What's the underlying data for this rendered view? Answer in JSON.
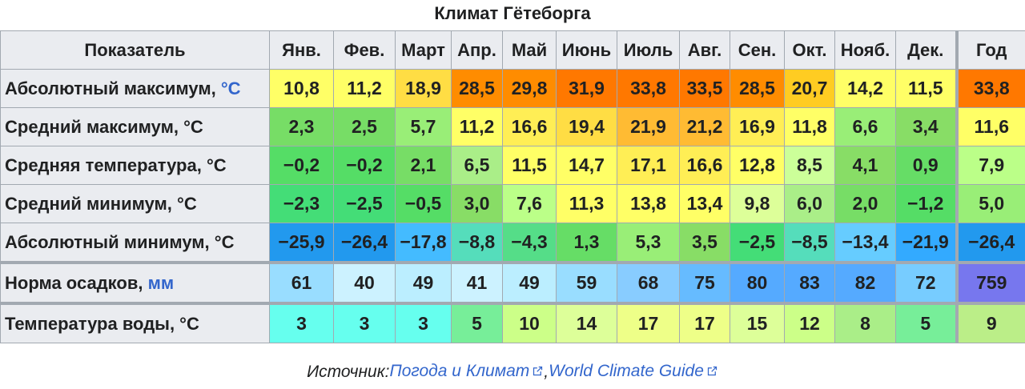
{
  "title": "Климат Гётеборга",
  "header": {
    "indicator": "Показатель",
    "months": [
      "Янв.",
      "Фев.",
      "Март",
      "Апр.",
      "Май",
      "Июнь",
      "Июль",
      "Авг.",
      "Сен.",
      "Окт.",
      "Нояб.",
      "Дек."
    ],
    "year": "Год"
  },
  "rows": [
    {
      "label": "Абсолютный максимум, ",
      "unit": "°C",
      "unit_is_link": true,
      "values": [
        "10,8",
        "11,2",
        "18,9",
        "28,5",
        "29,8",
        "31,9",
        "33,8",
        "33,5",
        "28,5",
        "20,7",
        "14,2",
        "11,5",
        "33,8"
      ],
      "colors": [
        "#ffff66",
        "#ffff66",
        "#ffdd44",
        "#ff8c00",
        "#ff8c00",
        "#ff7800",
        "#ff7800",
        "#ff7800",
        "#ff8c00",
        "#ffcc22",
        "#ffff66",
        "#ffff66",
        "#ff7800"
      ]
    },
    {
      "label": "Средний максимум, °C",
      "unit": "",
      "unit_is_link": false,
      "values": [
        "2,3",
        "2,5",
        "5,7",
        "11,2",
        "16,6",
        "19,4",
        "21,9",
        "21,2",
        "16,9",
        "11,8",
        "6,6",
        "3,4",
        "11,6"
      ],
      "colors": [
        "#77dd66",
        "#77dd66",
        "#99ee77",
        "#ffff66",
        "#ffee55",
        "#ffdd44",
        "#ffbb33",
        "#ffbb33",
        "#ffee55",
        "#ffff66",
        "#99ee77",
        "#88dd66",
        "#ffff66"
      ]
    },
    {
      "label": "Средняя температура, °C",
      "unit": "",
      "unit_is_link": false,
      "values": [
        "−0,2",
        "−0,2",
        "2,1",
        "6,5",
        "11,5",
        "14,7",
        "17,1",
        "16,6",
        "12,8",
        "8,5",
        "4,1",
        "0,9",
        "7,9"
      ],
      "colors": [
        "#55dd66",
        "#55dd66",
        "#77dd66",
        "#aaee88",
        "#ffff66",
        "#ffff66",
        "#ffee55",
        "#ffee55",
        "#ffff66",
        "#ccff99",
        "#88dd66",
        "#66dd66",
        "#bbff88"
      ]
    },
    {
      "label": "Средний минимум, °C",
      "unit": "",
      "unit_is_link": false,
      "values": [
        "−2,3",
        "−2,5",
        "−0,5",
        "3,0",
        "7,6",
        "11,3",
        "13,8",
        "13,4",
        "9,8",
        "6,0",
        "2,0",
        "−1,2",
        "5,0"
      ],
      "colors": [
        "#44dd77",
        "#44dd77",
        "#55dd66",
        "#88dd66",
        "#bbff88",
        "#ffff66",
        "#ffff66",
        "#ffff66",
        "#ddff99",
        "#aaee88",
        "#77dd66",
        "#55dd66",
        "#99ee77"
      ]
    },
    {
      "label": "Абсолютный минимум, °C",
      "unit": "",
      "unit_is_link": false,
      "values": [
        "−25,9",
        "−26,4",
        "−17,8",
        "−8,8",
        "−4,3",
        "1,3",
        "5,3",
        "3,5",
        "−2,5",
        "−8,5",
        "−13,4",
        "−21,9",
        "−26,4"
      ],
      "colors": [
        "#2299ee",
        "#2299ee",
        "#44bbff",
        "#55ddbb",
        "#55dd88",
        "#66dd66",
        "#99ee77",
        "#88dd66",
        "#44dd77",
        "#55ddbb",
        "#66ccff",
        "#33aaff",
        "#2299ee"
      ]
    },
    {
      "label": "Норма осадков, ",
      "unit": "мм",
      "unit_is_link": true,
      "values": [
        "61",
        "40",
        "49",
        "41",
        "49",
        "59",
        "68",
        "75",
        "80",
        "83",
        "82",
        "72",
        "759"
      ],
      "colors": [
        "#99ddff",
        "#ccf2ff",
        "#bbeeff",
        "#ccf2ff",
        "#bbeeff",
        "#99ddff",
        "#88ccff",
        "#66bbff",
        "#55aaff",
        "#55aaff",
        "#55aaff",
        "#77ccff",
        "#7777ee"
      ],
      "section_start": true
    },
    {
      "label": "Температура воды, °C",
      "unit": "",
      "unit_is_link": false,
      "values": [
        "3",
        "3",
        "3",
        "5",
        "10",
        "14",
        "17",
        "17",
        "15",
        "12",
        "8",
        "5",
        "9"
      ],
      "colors": [
        "#66ffee",
        "#66ffee",
        "#66ffee",
        "#77ee99",
        "#ccff88",
        "#ddff99",
        "#eeff88",
        "#eeff88",
        "#ddff99",
        "#ccff88",
        "#aaee88",
        "#77ee99",
        "#bbee88"
      ],
      "section_start": true
    }
  ],
  "source": {
    "prefix": "Источник: ",
    "links": [
      {
        "text": "Погода и Климат",
        "icon": "external-link-icon"
      },
      {
        "text": "World Climate Guide",
        "icon": "external-link-icon"
      }
    ],
    "separator": ", "
  }
}
